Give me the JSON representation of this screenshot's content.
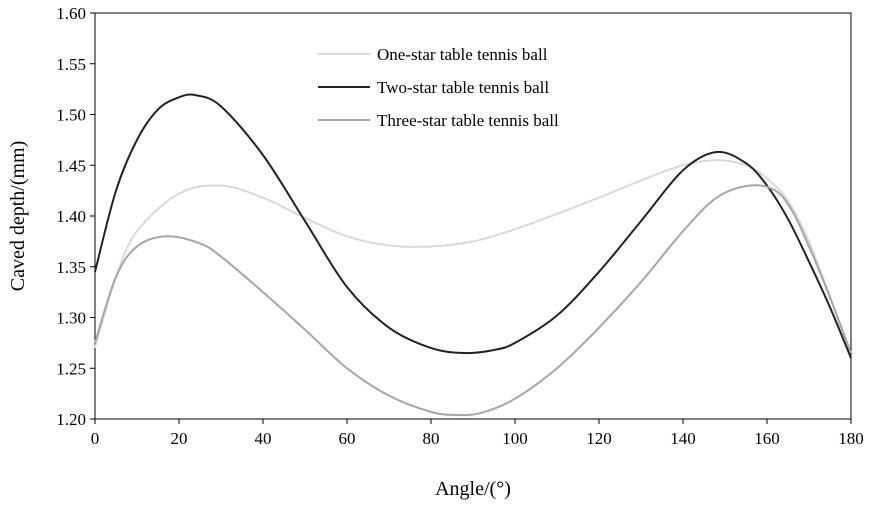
{
  "chart_data": {
    "type": "line",
    "title": "",
    "xlabel": "Angle/(°)",
    "ylabel": "Caved depth/(mm)",
    "xlim": [
      0,
      180
    ],
    "ylim": [
      1.2,
      1.6
    ],
    "x_ticks": [
      0,
      20,
      40,
      60,
      80,
      100,
      120,
      140,
      160,
      180
    ],
    "y_ticks": [
      1.2,
      1.25,
      1.3,
      1.35,
      1.4,
      1.45,
      1.5,
      1.55,
      1.6
    ],
    "x_tick_labels": [
      "0",
      "20",
      "40",
      "60",
      "80",
      "100",
      "120",
      "140",
      "160",
      "180"
    ],
    "y_tick_labels": [
      "1.20",
      "1.25",
      "1.30",
      "1.35",
      "1.40",
      "1.45",
      "1.50",
      "1.55",
      "1.60"
    ],
    "grid": false,
    "legend_position": "top-center",
    "series": [
      {
        "name": "One-star table tennis ball",
        "color": "#d9d9d9",
        "points": [
          [
            0,
            1.27
          ],
          [
            5,
            1.34
          ],
          [
            10,
            1.385
          ],
          [
            20,
            1.422
          ],
          [
            30,
            1.43
          ],
          [
            40,
            1.418
          ],
          [
            50,
            1.398
          ],
          [
            60,
            1.38
          ],
          [
            70,
            1.371
          ],
          [
            80,
            1.37
          ],
          [
            90,
            1.375
          ],
          [
            100,
            1.387
          ],
          [
            110,
            1.402
          ],
          [
            120,
            1.418
          ],
          [
            130,
            1.435
          ],
          [
            140,
            1.45
          ],
          [
            148,
            1.455
          ],
          [
            155,
            1.45
          ],
          [
            160,
            1.437
          ],
          [
            165,
            1.415
          ],
          [
            170,
            1.375
          ],
          [
            175,
            1.32
          ],
          [
            180,
            1.26
          ]
        ]
      },
      {
        "name": "Two-star table tennis ball",
        "color": "#222222",
        "points": [
          [
            0,
            1.345
          ],
          [
            5,
            1.425
          ],
          [
            10,
            1.475
          ],
          [
            15,
            1.505
          ],
          [
            20,
            1.517
          ],
          [
            24,
            1.519
          ],
          [
            30,
            1.508
          ],
          [
            40,
            1.46
          ],
          [
            50,
            1.395
          ],
          [
            60,
            1.33
          ],
          [
            70,
            1.29
          ],
          [
            80,
            1.27
          ],
          [
            88,
            1.265
          ],
          [
            95,
            1.268
          ],
          [
            100,
            1.275
          ],
          [
            110,
            1.302
          ],
          [
            120,
            1.345
          ],
          [
            130,
            1.395
          ],
          [
            140,
            1.445
          ],
          [
            148,
            1.463
          ],
          [
            155,
            1.452
          ],
          [
            160,
            1.43
          ],
          [
            165,
            1.397
          ],
          [
            170,
            1.355
          ],
          [
            175,
            1.31
          ],
          [
            180,
            1.26
          ]
        ]
      },
      {
        "name": "Three-star table tennis ball",
        "color": "#a6a6a6",
        "points": [
          [
            0,
            1.275
          ],
          [
            5,
            1.34
          ],
          [
            10,
            1.37
          ],
          [
            17,
            1.38
          ],
          [
            25,
            1.373
          ],
          [
            30,
            1.36
          ],
          [
            40,
            1.325
          ],
          [
            50,
            1.288
          ],
          [
            60,
            1.25
          ],
          [
            70,
            1.223
          ],
          [
            80,
            1.207
          ],
          [
            86,
            1.204
          ],
          [
            92,
            1.206
          ],
          [
            100,
            1.22
          ],
          [
            110,
            1.25
          ],
          [
            120,
            1.29
          ],
          [
            130,
            1.335
          ],
          [
            140,
            1.385
          ],
          [
            148,
            1.418
          ],
          [
            156,
            1.43
          ],
          [
            162,
            1.425
          ],
          [
            166,
            1.405
          ],
          [
            170,
            1.37
          ],
          [
            175,
            1.32
          ],
          [
            180,
            1.265
          ]
        ]
      }
    ]
  }
}
